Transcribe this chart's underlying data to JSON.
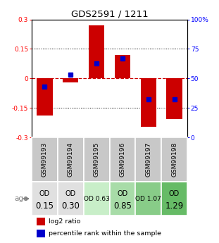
{
  "title": "GDS2591 / 1211",
  "samples": [
    "GSM99193",
    "GSM99194",
    "GSM99195",
    "GSM99196",
    "GSM99197",
    "GSM99198"
  ],
  "log2_ratios": [
    -0.19,
    -0.02,
    0.27,
    0.12,
    -0.245,
    -0.205
  ],
  "percentile_ranks": [
    43,
    53,
    63,
    67,
    32,
    32
  ],
  "age_labels_line1": [
    "OD",
    "OD",
    "OD 0.63",
    "OD",
    "OD 1.07",
    "OD"
  ],
  "age_labels_line2": [
    "0.15",
    "0.30",
    "",
    "0.85",
    "",
    "1.29"
  ],
  "age_fontsize_large": [
    true,
    true,
    false,
    true,
    false,
    true
  ],
  "age_bg_colors": [
    "#e0e0e0",
    "#e0e0e0",
    "#c8eec8",
    "#a8dca8",
    "#88cc88",
    "#66bb66"
  ],
  "bar_color": "#cc0000",
  "dot_color": "#0000cc",
  "ylim": [
    -0.3,
    0.3
  ],
  "yticks_left": [
    -0.3,
    -0.15,
    0,
    0.15,
    0.3
  ],
  "yticks_right": [
    0,
    25,
    50,
    75,
    100
  ],
  "background_color": "#ffffff",
  "sample_bg_color": "#c8c8c8",
  "legend_log2": "log2 ratio",
  "legend_pct": "percentile rank within the sample"
}
